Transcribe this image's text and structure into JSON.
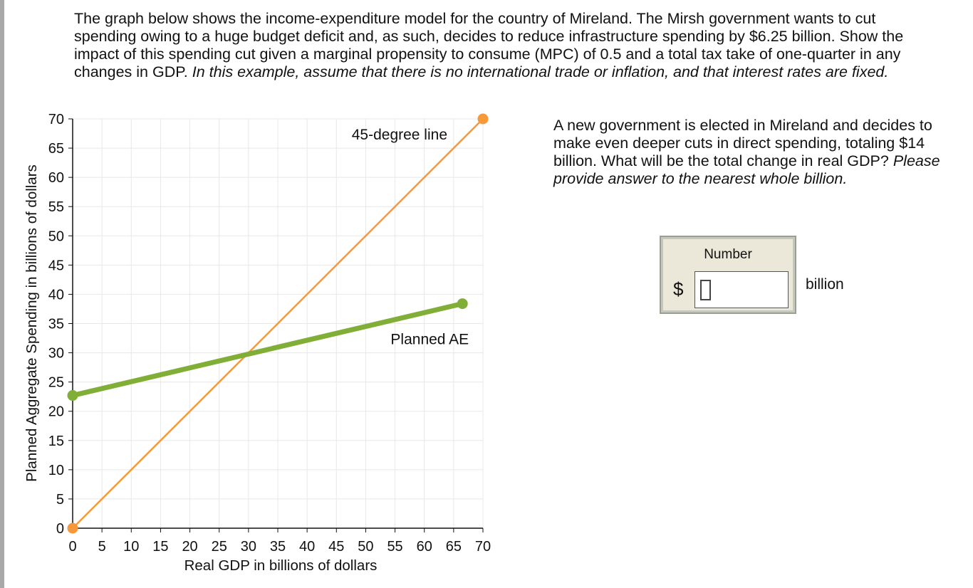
{
  "intro": {
    "text": "The graph below shows the income-expenditure model for the country of Mireland. The Mirsh government wants to cut spending owing to a huge budget deficit and, as such, decides to reduce infrastructure spending by $6.25 billion. Show the impact of this spending cut given a marginal propensity to consume (MPC) of 0.5 and a total tax take of one-quarter in any changes in GDP.",
    "emphasis": "In this example, assume that there is no international trade or inflation, and that interest rates are fixed."
  },
  "question": {
    "text": "A new government is elected in Mireland and decides to make even deeper cuts in direct spending, totaling $14 billion. What will be the total change in real GDP?",
    "emphasis": "Please provide answer to the nearest whole billion."
  },
  "answer": {
    "type_label": "Number",
    "currency": "$",
    "value": "",
    "unit": "billion"
  },
  "colors": {
    "forty_five_line": "#f7993b",
    "planned_ae": "#80ae36",
    "grid": "#e8e8e8",
    "axis": "#111111"
  },
  "chart_data": {
    "type": "line",
    "xlabel": "Real GDP in billions of dollars",
    "ylabel": "Planned Aggregate Spending in billions of dollars",
    "xlim": [
      0,
      70
    ],
    "ylim": [
      0,
      70
    ],
    "x_ticks": [
      "0",
      "5",
      "10",
      "15",
      "20",
      "25",
      "30",
      "35",
      "40",
      "45",
      "50",
      "55",
      "60",
      "65",
      "70"
    ],
    "y_ticks": [
      "0",
      "5",
      "10",
      "15",
      "20",
      "25",
      "30",
      "35",
      "40",
      "45",
      "50",
      "55",
      "60",
      "65",
      "70"
    ],
    "grid": true,
    "series": [
      {
        "name": "45-degree line",
        "color": "#f7993b",
        "points": [
          [
            0,
            0
          ],
          [
            70,
            70
          ]
        ],
        "endpoint_markers": true
      },
      {
        "name": "Planned AE",
        "color": "#80ae36",
        "points": [
          [
            0,
            22.7
          ],
          [
            66.5,
            38.4
          ]
        ],
        "endpoint_markers": true
      }
    ]
  }
}
